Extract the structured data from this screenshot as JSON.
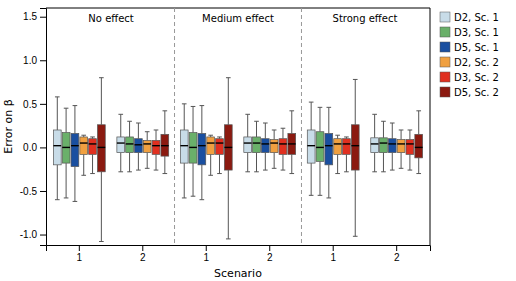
{
  "chart_data": {
    "type": "box",
    "xlabel": "Scenario",
    "ylabel": "Error on β",
    "group_labels": [
      "No effect",
      "Medium effect",
      "Strong effect"
    ],
    "categories": [
      "1",
      "2",
      "1",
      "2",
      "1",
      "2"
    ],
    "ylim": [
      -1.12,
      1.6
    ],
    "yticks": [
      {
        "value": -1.0,
        "label": "-1.0"
      },
      -0.5,
      {
        "value": 0.0,
        "label": "0.0"
      },
      0.5,
      {
        "value": 1.0,
        "label": "1.0"
      },
      1.5
    ],
    "grid": false,
    "legend": "right",
    "series": [
      {
        "name": "D2, Sc. 1",
        "color": "#c8dce8",
        "values": [
          {
            "whislo": -0.6,
            "q1": -0.2,
            "med": 0.02,
            "q3": 0.2,
            "whishi": 0.58
          },
          {
            "whislo": -0.28,
            "q1": -0.06,
            "med": 0.05,
            "q3": 0.12,
            "whishi": 0.38
          },
          {
            "whislo": -0.58,
            "q1": -0.18,
            "med": 0.02,
            "q3": 0.2,
            "whishi": 0.5
          },
          {
            "whislo": -0.28,
            "q1": -0.06,
            "med": 0.05,
            "q3": 0.12,
            "whishi": 0.38
          },
          {
            "whislo": -0.55,
            "q1": -0.18,
            "med": 0.02,
            "q3": 0.2,
            "whishi": 0.52
          },
          {
            "whislo": -0.28,
            "q1": -0.06,
            "med": 0.04,
            "q3": 0.11,
            "whishi": 0.38
          }
        ]
      },
      {
        "name": "D3, Sc. 1",
        "color": "#6ab06a",
        "values": [
          {
            "whislo": -0.58,
            "q1": -0.18,
            "med": 0.0,
            "q3": 0.17,
            "whishi": 0.45
          },
          {
            "whislo": -0.28,
            "q1": -0.06,
            "med": 0.04,
            "q3": 0.12,
            "whishi": 0.3
          },
          {
            "whislo": -0.56,
            "q1": -0.18,
            "med": 0.0,
            "q3": 0.17,
            "whishi": 0.47
          },
          {
            "whislo": -0.28,
            "q1": -0.06,
            "med": 0.05,
            "q3": 0.12,
            "whishi": 0.3
          },
          {
            "whislo": -0.55,
            "q1": -0.16,
            "med": 0.0,
            "q3": 0.18,
            "whishi": 0.46
          },
          {
            "whislo": -0.28,
            "q1": -0.06,
            "med": 0.05,
            "q3": 0.11,
            "whishi": 0.3
          }
        ]
      },
      {
        "name": "D5, Sc. 1",
        "color": "#1a4fa0",
        "values": [
          {
            "whislo": -0.62,
            "q1": -0.22,
            "med": 0.02,
            "q3": 0.16,
            "whishi": 0.48
          },
          {
            "whislo": -0.26,
            "q1": -0.06,
            "med": 0.03,
            "q3": 0.1,
            "whishi": 0.28
          },
          {
            "whislo": -0.6,
            "q1": -0.2,
            "med": 0.02,
            "q3": 0.16,
            "whishi": 0.48
          },
          {
            "whislo": -0.26,
            "q1": -0.06,
            "med": 0.04,
            "q3": 0.1,
            "whishi": 0.28
          },
          {
            "whislo": -0.58,
            "q1": -0.2,
            "med": 0.02,
            "q3": 0.16,
            "whishi": 0.46
          },
          {
            "whislo": -0.26,
            "q1": -0.06,
            "med": 0.04,
            "q3": 0.1,
            "whishi": 0.28
          }
        ]
      },
      {
        "name": "D2, Sc. 2",
        "color": "#f0a040",
        "values": [
          {
            "whislo": -0.32,
            "q1": -0.08,
            "med": 0.05,
            "q3": 0.12,
            "whishi": 0.14
          },
          {
            "whislo": -0.24,
            "q1": -0.06,
            "med": 0.04,
            "q3": 0.08,
            "whishi": 0.18
          },
          {
            "whislo": -0.32,
            "q1": -0.08,
            "med": 0.05,
            "q3": 0.12,
            "whishi": 0.14
          },
          {
            "whislo": -0.24,
            "q1": -0.06,
            "med": 0.05,
            "q3": 0.09,
            "whishi": 0.2
          },
          {
            "whislo": -0.3,
            "q1": -0.08,
            "med": 0.04,
            "q3": 0.1,
            "whishi": 0.14
          },
          {
            "whislo": -0.24,
            "q1": -0.06,
            "med": 0.04,
            "q3": 0.09,
            "whishi": 0.2
          }
        ]
      },
      {
        "name": "D3, Sc. 2",
        "color": "#e03020",
        "values": [
          {
            "whislo": -0.3,
            "q1": -0.08,
            "med": 0.04,
            "q3": 0.1,
            "whishi": 0.12
          },
          {
            "whislo": -0.26,
            "q1": -0.08,
            "med": 0.02,
            "q3": 0.08,
            "whishi": 0.2
          },
          {
            "whislo": -0.3,
            "q1": -0.08,
            "med": 0.05,
            "q3": 0.1,
            "whishi": 0.12
          },
          {
            "whislo": -0.26,
            "q1": -0.08,
            "med": 0.04,
            "q3": 0.1,
            "whishi": 0.22
          },
          {
            "whislo": -0.28,
            "q1": -0.08,
            "med": 0.04,
            "q3": 0.1,
            "whishi": 0.12
          },
          {
            "whislo": -0.26,
            "q1": -0.08,
            "med": 0.04,
            "q3": 0.09,
            "whishi": 0.2
          }
        ]
      },
      {
        "name": "D5, Sc. 2",
        "color": "#8b1a10",
        "values": [
          {
            "whislo": -1.08,
            "q1": -0.28,
            "med": 0.0,
            "q3": 0.26,
            "whishi": 0.8
          },
          {
            "whislo": -0.3,
            "q1": -0.1,
            "med": 0.02,
            "q3": 0.15,
            "whishi": 0.42
          },
          {
            "whislo": -1.05,
            "q1": -0.26,
            "med": 0.0,
            "q3": 0.26,
            "whishi": 0.8
          },
          {
            "whislo": -0.3,
            "q1": -0.08,
            "med": 0.04,
            "q3": 0.16,
            "whishi": 0.42
          },
          {
            "whislo": -1.02,
            "q1": -0.26,
            "med": 0.02,
            "q3": 0.26,
            "whishi": 0.78
          },
          {
            "whislo": -0.3,
            "q1": -0.12,
            "med": 0.0,
            "q3": 0.15,
            "whishi": 0.42
          }
        ]
      }
    ]
  }
}
